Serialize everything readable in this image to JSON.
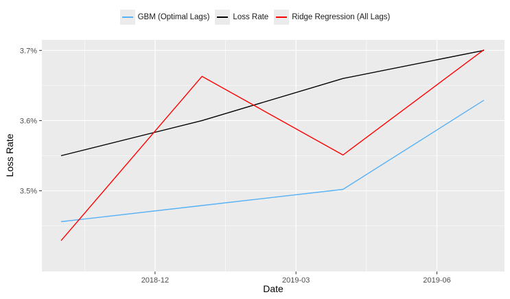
{
  "chart_data": {
    "type": "line",
    "xlabel": "Date",
    "ylabel": "Loss Rate",
    "x": [
      "2018-10",
      "2019-01",
      "2019-04",
      "2019-07"
    ],
    "xticks": [
      {
        "date": "2018-12",
        "label": "2018-12"
      },
      {
        "date": "2019-03",
        "label": "2019-03"
      },
      {
        "date": "2019-06",
        "label": "2019-06"
      }
    ],
    "yticks": [
      {
        "value": 3.5,
        "label": "3.5%"
      },
      {
        "value": 3.6,
        "label": "3.6%"
      },
      {
        "value": 3.7,
        "label": "3.7%"
      }
    ],
    "ylim": [
      3.385,
      3.715
    ],
    "grid": true,
    "legend_position": "top",
    "series": [
      {
        "name": "GBM (Optimal Lags)",
        "color": "#56B1F7",
        "values": [
          3.456,
          3.479,
          3.502,
          3.629
        ]
      },
      {
        "name": "Loss Rate",
        "color": "#000000",
        "values": [
          3.55,
          3.6,
          3.66,
          3.7
        ]
      },
      {
        "name": "Ridge Regression (All Lags)",
        "color": "#FF0000",
        "values": [
          3.429,
          3.663,
          3.551,
          3.701
        ]
      }
    ]
  }
}
